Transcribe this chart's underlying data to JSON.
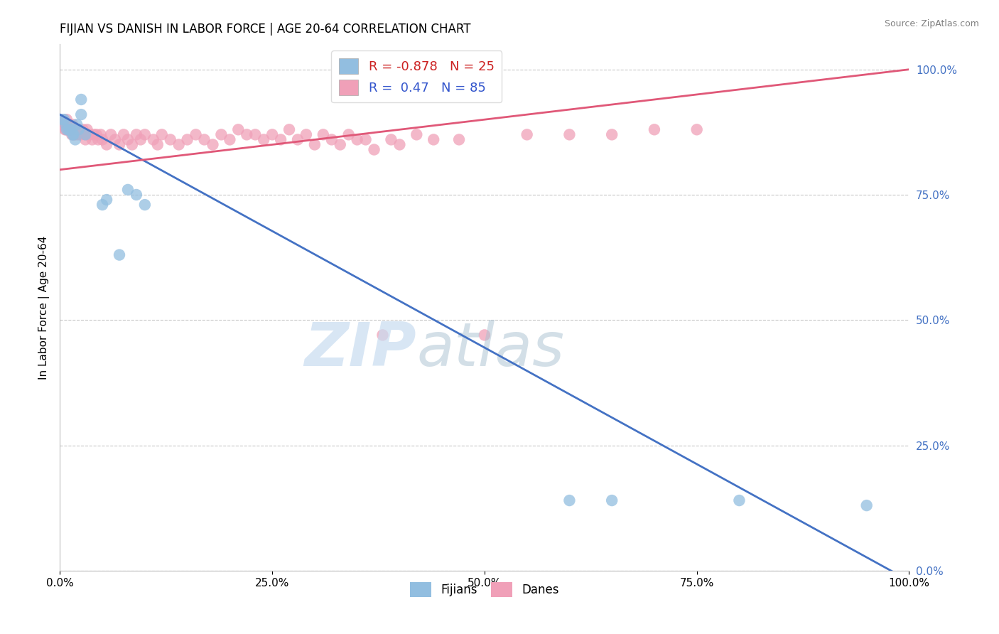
{
  "title": "FIJIAN VS DANISH IN LABOR FORCE | AGE 20-64 CORRELATION CHART",
  "source": "Source: ZipAtlas.com",
  "ylabel": "In Labor Force | Age 20-64",
  "fijian_R": -0.878,
  "fijian_N": 25,
  "danish_R": 0.47,
  "danish_N": 85,
  "fijian_color": "#92BEE0",
  "danish_color": "#F0A0B8",
  "fijian_line_color": "#4472C4",
  "danish_line_color": "#E05878",
  "fijian_scatter": [
    [
      0.003,
      0.9
    ],
    [
      0.005,
      0.9
    ],
    [
      0.007,
      0.89
    ],
    [
      0.008,
      0.88
    ],
    [
      0.01,
      0.88
    ],
    [
      0.012,
      0.88
    ],
    [
      0.013,
      0.88
    ],
    [
      0.015,
      0.87
    ],
    [
      0.016,
      0.87
    ],
    [
      0.018,
      0.86
    ],
    [
      0.02,
      0.89
    ],
    [
      0.022,
      0.88
    ],
    [
      0.025,
      0.94
    ],
    [
      0.025,
      0.91
    ],
    [
      0.03,
      0.87
    ],
    [
      0.05,
      0.73
    ],
    [
      0.055,
      0.74
    ],
    [
      0.07,
      0.63
    ],
    [
      0.08,
      0.76
    ],
    [
      0.09,
      0.75
    ],
    [
      0.1,
      0.73
    ],
    [
      0.6,
      0.14
    ],
    [
      0.65,
      0.14
    ],
    [
      0.8,
      0.14
    ],
    [
      0.95,
      0.13
    ]
  ],
  "danish_scatter": [
    [
      0.003,
      0.89
    ],
    [
      0.004,
      0.9
    ],
    [
      0.005,
      0.89
    ],
    [
      0.006,
      0.88
    ],
    [
      0.007,
      0.89
    ],
    [
      0.007,
      0.88
    ],
    [
      0.008,
      0.9
    ],
    [
      0.009,
      0.88
    ],
    [
      0.01,
      0.89
    ],
    [
      0.01,
      0.88
    ],
    [
      0.011,
      0.89
    ],
    [
      0.012,
      0.88
    ],
    [
      0.013,
      0.88
    ],
    [
      0.014,
      0.87
    ],
    [
      0.015,
      0.88
    ],
    [
      0.015,
      0.89
    ],
    [
      0.016,
      0.88
    ],
    [
      0.017,
      0.87
    ],
    [
      0.018,
      0.88
    ],
    [
      0.019,
      0.87
    ],
    [
      0.02,
      0.88
    ],
    [
      0.022,
      0.87
    ],
    [
      0.023,
      0.88
    ],
    [
      0.025,
      0.87
    ],
    [
      0.027,
      0.88
    ],
    [
      0.03,
      0.87
    ],
    [
      0.03,
      0.86
    ],
    [
      0.032,
      0.88
    ],
    [
      0.035,
      0.87
    ],
    [
      0.038,
      0.86
    ],
    [
      0.04,
      0.87
    ],
    [
      0.043,
      0.87
    ],
    [
      0.045,
      0.86
    ],
    [
      0.048,
      0.87
    ],
    [
      0.05,
      0.86
    ],
    [
      0.055,
      0.85
    ],
    [
      0.06,
      0.87
    ],
    [
      0.065,
      0.86
    ],
    [
      0.07,
      0.85
    ],
    [
      0.075,
      0.87
    ],
    [
      0.08,
      0.86
    ],
    [
      0.085,
      0.85
    ],
    [
      0.09,
      0.87
    ],
    [
      0.095,
      0.86
    ],
    [
      0.1,
      0.87
    ],
    [
      0.11,
      0.86
    ],
    [
      0.115,
      0.85
    ],
    [
      0.12,
      0.87
    ],
    [
      0.13,
      0.86
    ],
    [
      0.14,
      0.85
    ],
    [
      0.15,
      0.86
    ],
    [
      0.16,
      0.87
    ],
    [
      0.17,
      0.86
    ],
    [
      0.18,
      0.85
    ],
    [
      0.19,
      0.87
    ],
    [
      0.2,
      0.86
    ],
    [
      0.21,
      0.88
    ],
    [
      0.22,
      0.87
    ],
    [
      0.23,
      0.87
    ],
    [
      0.24,
      0.86
    ],
    [
      0.25,
      0.87
    ],
    [
      0.26,
      0.86
    ],
    [
      0.27,
      0.88
    ],
    [
      0.28,
      0.86
    ],
    [
      0.29,
      0.87
    ],
    [
      0.3,
      0.85
    ],
    [
      0.31,
      0.87
    ],
    [
      0.32,
      0.86
    ],
    [
      0.33,
      0.85
    ],
    [
      0.34,
      0.87
    ],
    [
      0.35,
      0.86
    ],
    [
      0.36,
      0.86
    ],
    [
      0.37,
      0.84
    ],
    [
      0.38,
      0.47
    ],
    [
      0.39,
      0.86
    ],
    [
      0.4,
      0.85
    ],
    [
      0.42,
      0.87
    ],
    [
      0.44,
      0.86
    ],
    [
      0.47,
      0.86
    ],
    [
      0.5,
      0.47
    ],
    [
      0.55,
      0.87
    ],
    [
      0.6,
      0.87
    ],
    [
      0.65,
      0.87
    ],
    [
      0.7,
      0.88
    ],
    [
      0.75,
      0.88
    ]
  ],
  "xlim": [
    0.0,
    1.0
  ],
  "ylim": [
    0.0,
    1.05
  ],
  "yticks": [
    0.0,
    0.25,
    0.5,
    0.75,
    1.0
  ],
  "ytick_labels": [
    "0.0%",
    "25.0%",
    "50.0%",
    "75.0%",
    "100.0%"
  ],
  "xticks": [
    0.0,
    0.25,
    0.5,
    0.75,
    1.0
  ],
  "xtick_labels": [
    "0.0%",
    "25.0%",
    "50.0%",
    "75.0%",
    "100.0%"
  ],
  "fijian_line_x0": 0.0,
  "fijian_line_y0": 0.91,
  "fijian_line_x1": 1.0,
  "fijian_line_y1": -0.02,
  "danish_line_x0": 0.0,
  "danish_line_y0": 0.8,
  "danish_line_x1": 1.0,
  "danish_line_y1": 1.0,
  "background_color": "#FFFFFF",
  "grid_color": "#C8C8C8"
}
